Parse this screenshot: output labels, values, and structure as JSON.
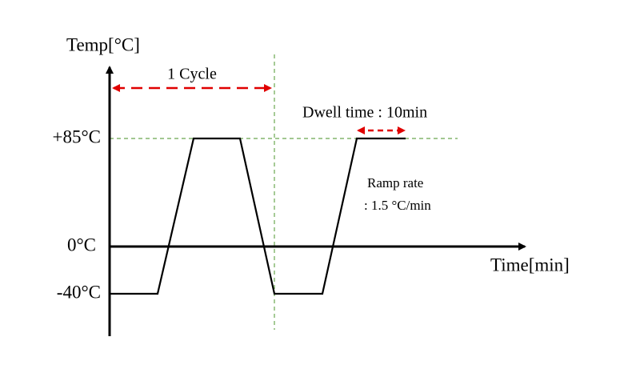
{
  "axes": {
    "y_label": "Temp[°C]",
    "x_label": "Time[min]"
  },
  "levels": {
    "high": "+85°C",
    "zero": "0°C",
    "low": "-40°C"
  },
  "annotations": {
    "cycle": "1 Cycle",
    "dwell": "Dwell time : 10min",
    "ramp_title": "Ramp rate",
    "ramp_value": ": 1.5 °C/min"
  }
}
